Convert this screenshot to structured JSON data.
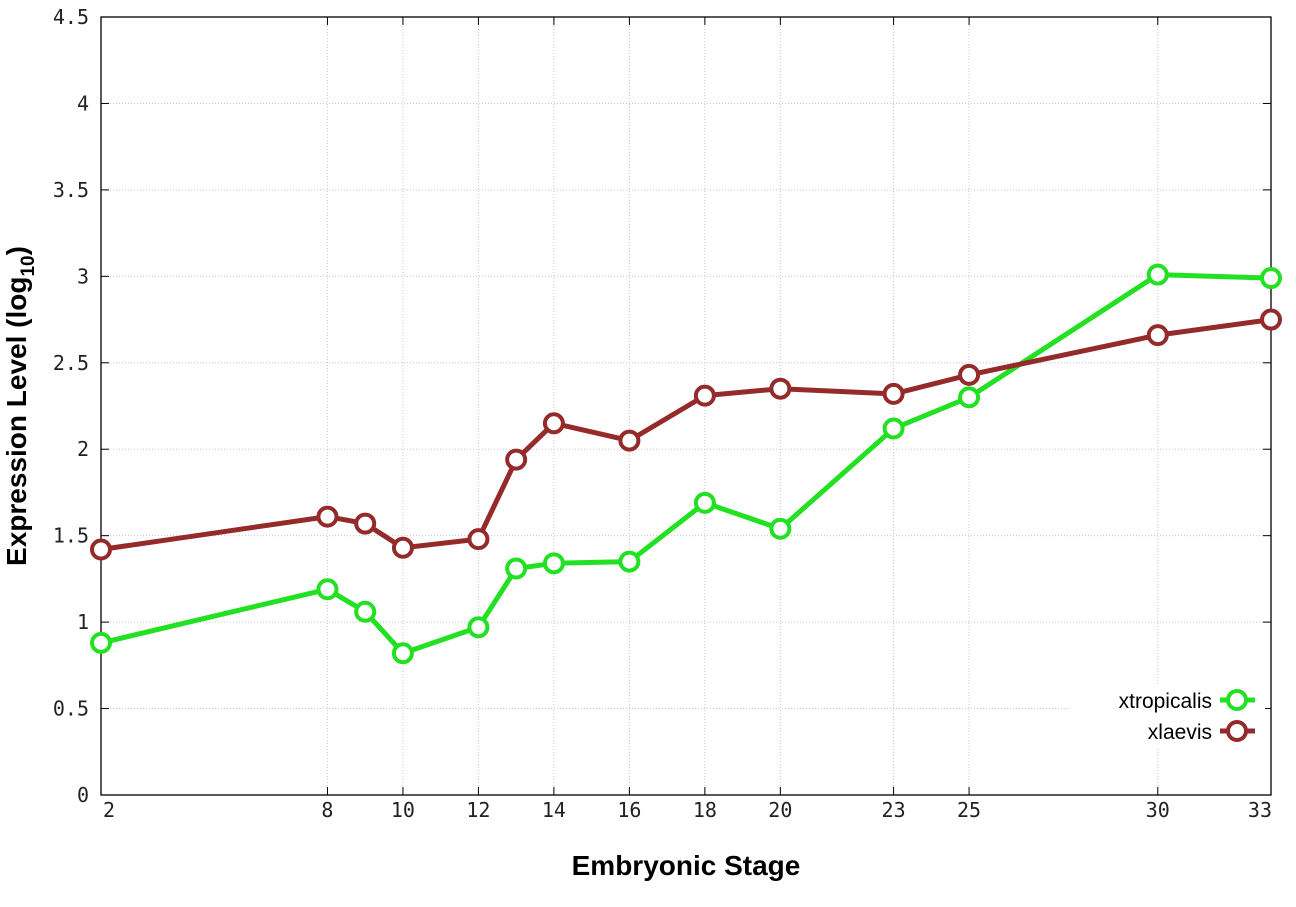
{
  "chart_data": {
    "type": "line",
    "title": "",
    "xlabel": "Embryonic Stage",
    "ylabel": {
      "main": "Expression Level (log",
      "sub": "10",
      "end": ")"
    },
    "x": [
      2,
      8,
      9,
      10,
      12,
      13,
      14,
      16,
      18,
      20,
      23,
      25,
      30,
      33
    ],
    "x_ticks": [
      2,
      8,
      10,
      12,
      14,
      16,
      18,
      20,
      23,
      25,
      30,
      33
    ],
    "y_ticks": [
      "0",
      "0.5",
      "1",
      "1.5",
      "2",
      "2.5",
      "3",
      "3.5",
      "4",
      "4.5"
    ],
    "xlim": [
      2,
      33
    ],
    "ylim": [
      0,
      4.5
    ],
    "grid": true,
    "legend_position": "bottom-right",
    "series": [
      {
        "name": "xtropicalis",
        "color": "#22e022",
        "values": [
          0.88,
          1.19,
          1.06,
          0.82,
          0.97,
          1.31,
          1.34,
          1.35,
          1.69,
          1.54,
          2.12,
          2.3,
          3.01,
          2.99
        ]
      },
      {
        "name": "xlaevis",
        "color": "#952a2a",
        "values": [
          1.42,
          1.61,
          1.57,
          1.43,
          1.48,
          1.94,
          2.15,
          2.05,
          2.31,
          2.35,
          2.32,
          2.43,
          2.66,
          2.75
        ]
      }
    ]
  }
}
